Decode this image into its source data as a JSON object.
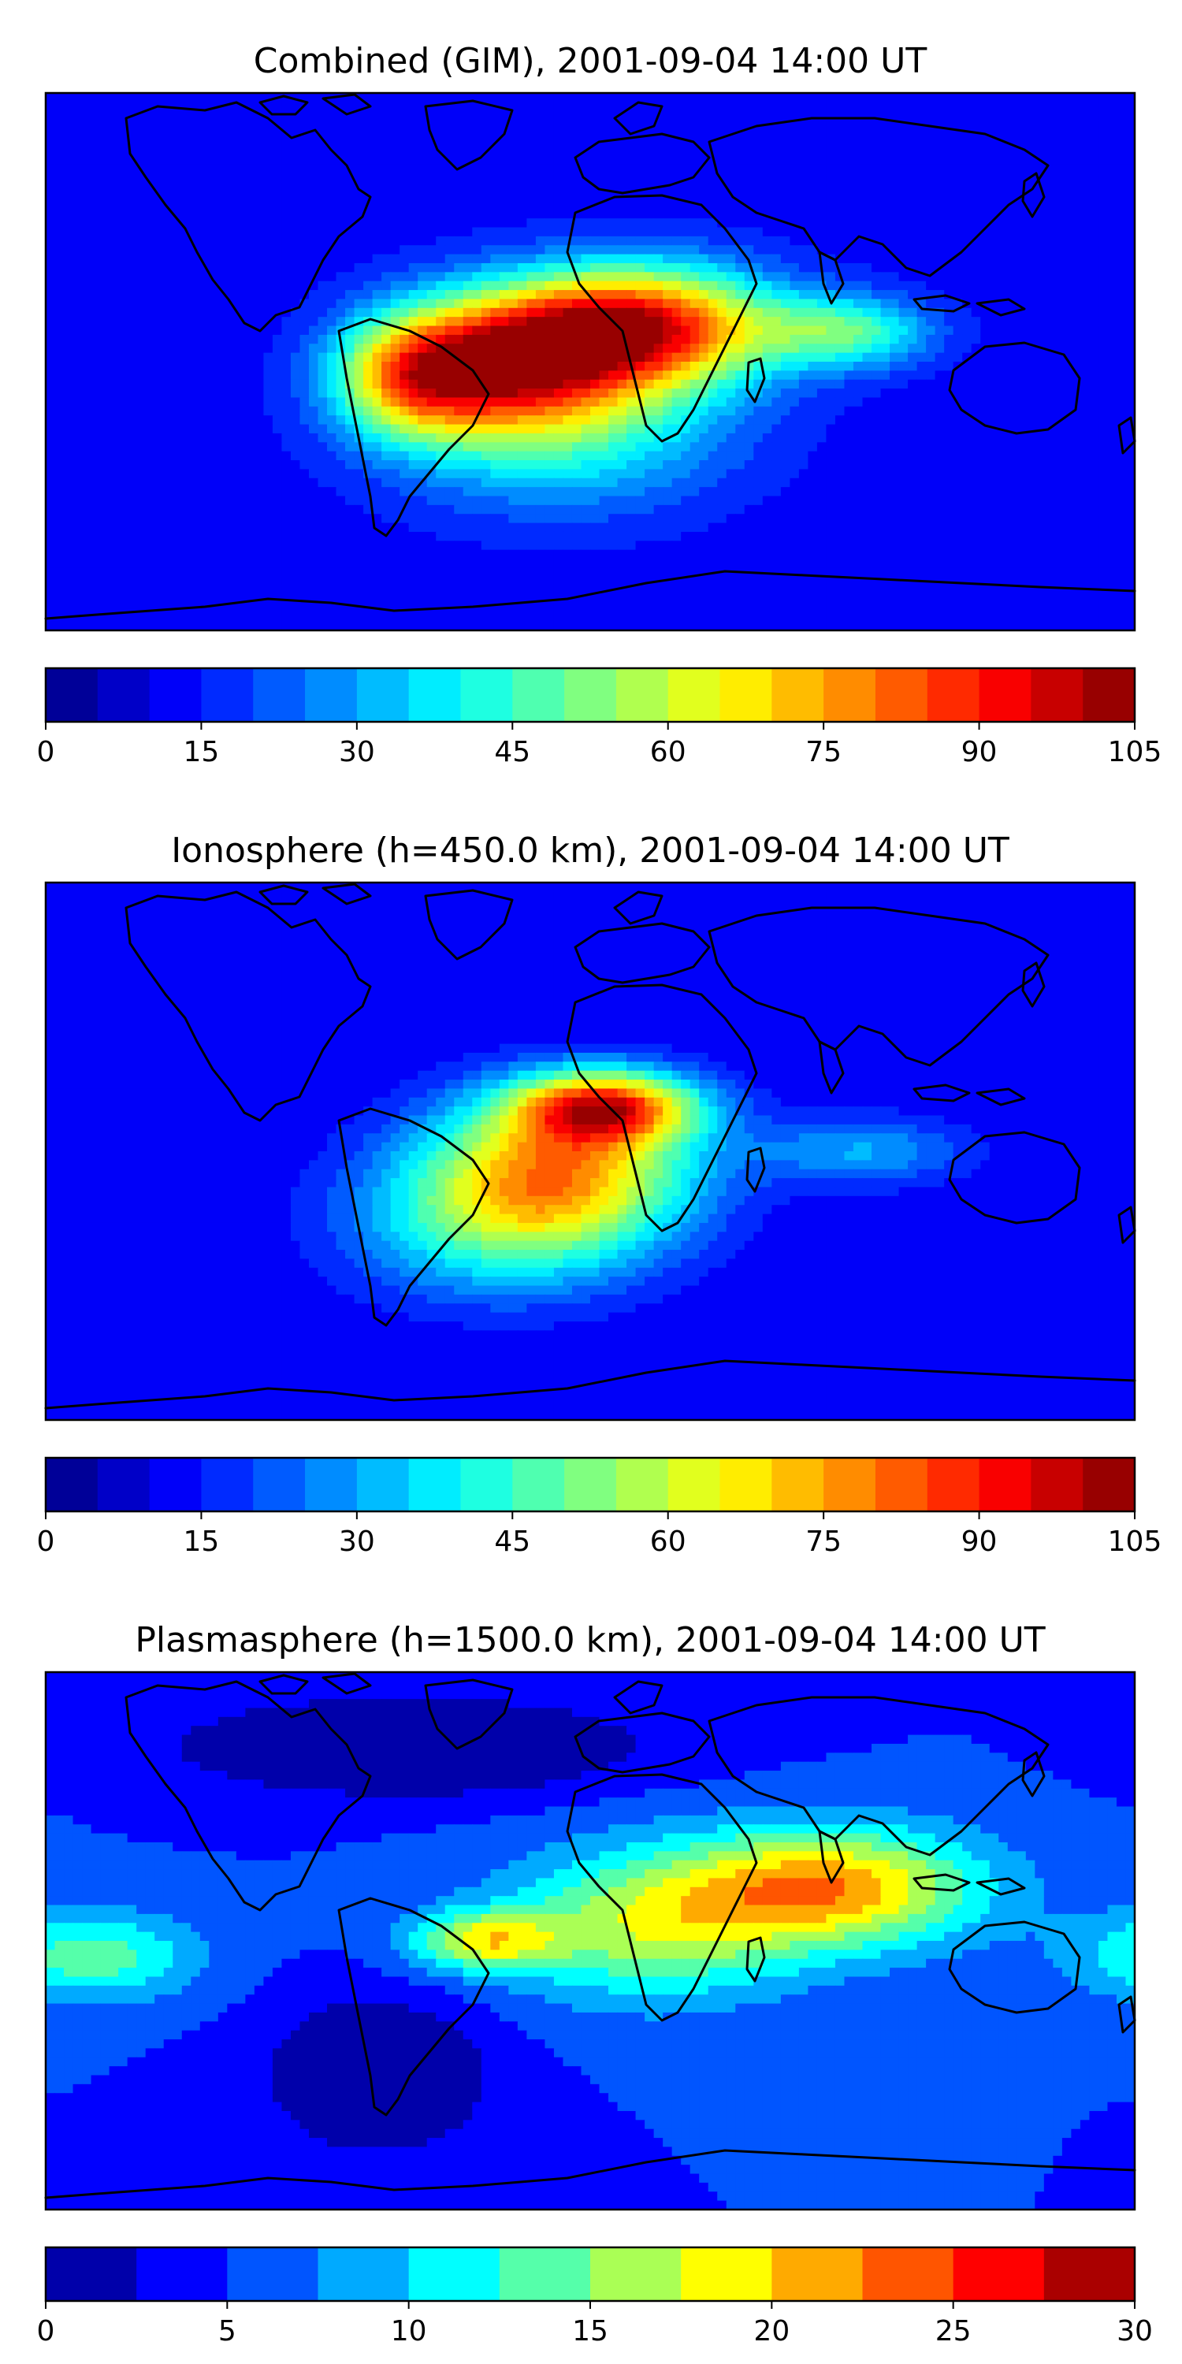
{
  "panels": [
    {
      "title": "Combined (GIM), 2001-09-04 14:00 UT",
      "colorbar": {
        "min": 0,
        "max": 105,
        "step": 5,
        "ticks": [
          "0",
          "15",
          "30",
          "45",
          "60",
          "75",
          "90",
          "105"
        ]
      },
      "field": {
        "background": 12,
        "blobs": [
          {
            "lon": 15,
            "lat": 12,
            "value": 92,
            "rx": 45,
            "ry": 20
          },
          {
            "lon": -30,
            "lat": 0,
            "value": 70,
            "rx": 38,
            "ry": 22
          },
          {
            "lon": -10,
            "lat": -20,
            "value": 45,
            "rx": 55,
            "ry": 28
          },
          {
            "lon": 85,
            "lat": 10,
            "value": 45,
            "rx": 28,
            "ry": 12
          },
          {
            "lon": -60,
            "lat": -5,
            "value": 55,
            "rx": 25,
            "ry": 20
          }
        ]
      }
    },
    {
      "title": "Ionosphere  (h=450.0 km), 2001-09-04 14:00 UT",
      "colorbar": {
        "min": 0,
        "max": 105,
        "step": 5,
        "ticks": [
          "0",
          "15",
          "30",
          "45",
          "60",
          "75",
          "90",
          "105"
        ]
      },
      "field": {
        "background": 10,
        "blobs": [
          {
            "lon": 5,
            "lat": 15,
            "value": 76,
            "rx": 30,
            "ry": 12
          },
          {
            "lon": -10,
            "lat": -5,
            "value": 65,
            "rx": 45,
            "ry": 25
          },
          {
            "lon": -30,
            "lat": -25,
            "value": 40,
            "rx": 50,
            "ry": 25
          },
          {
            "lon": 90,
            "lat": 0,
            "value": 30,
            "rx": 35,
            "ry": 12
          }
        ]
      }
    },
    {
      "title": "Plasmasphere (h=1500.0 km), 2001-09-04 14:00 UT",
      "colorbar": {
        "min": 0,
        "max": 30,
        "step": 2.5,
        "ticks": [
          "0",
          "5",
          "10",
          "15",
          "20",
          "25",
          "30"
        ]
      },
      "field": {
        "background": 5,
        "blobs": [
          {
            "lon": 80,
            "lat": 18,
            "value": 21,
            "rx": 50,
            "ry": 20
          },
          {
            "lon": 20,
            "lat": 5,
            "value": 16,
            "rx": 50,
            "ry": 25
          },
          {
            "lon": -165,
            "lat": -5,
            "value": 14,
            "rx": 35,
            "ry": 15
          },
          {
            "lon": -35,
            "lat": 0,
            "value": 17,
            "rx": 25,
            "ry": 10
          },
          {
            "lon": -70,
            "lat": -45,
            "value": -2,
            "rx": 35,
            "ry": 25
          },
          {
            "lon": -60,
            "lat": 65,
            "value": -3,
            "rx": 70,
            "ry": 15
          }
        ]
      }
    }
  ],
  "colormap": "jet"
}
